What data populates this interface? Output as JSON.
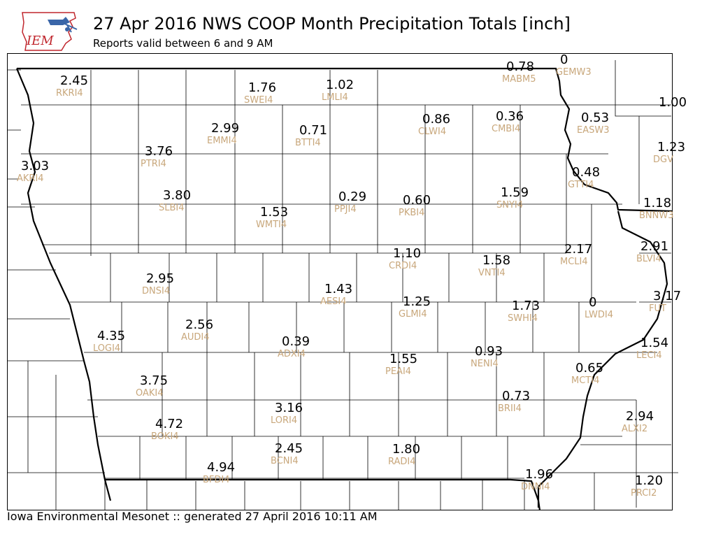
{
  "header": {
    "logo_text": "IEM",
    "title": "27 Apr 2016 NWS COOP Month Precipitation Totals [inch]",
    "subtitle": "Reports valid between 6 and 9 AM"
  },
  "footer": {
    "text": "Iowa Environmental Mesonet :: generated 27 April 2016 10:11 AM"
  },
  "colors": {
    "value": "#000000",
    "station_id": "#c8a77b",
    "county_line": "#000000",
    "logo_blue": "#3a66a8",
    "logo_red": "#c0262d"
  },
  "stations": [
    {
      "id": "RKRI4",
      "value": "2.45"
    },
    {
      "id": "SWEI4",
      "value": "1.76"
    },
    {
      "id": "LMLI4",
      "value": "1.02"
    },
    {
      "id": "MABM5",
      "value": "0.78"
    },
    {
      "id": "GEMW3",
      "value": "0"
    },
    {
      "id": "CLWI4",
      "value": "0.86"
    },
    {
      "id": "CMBI4",
      "value": "0.36"
    },
    {
      "id": "EASW3",
      "value": "0.53"
    },
    {
      "id": "",
      "value": "1.00"
    },
    {
      "id": "EMMI4",
      "value": "2.99"
    },
    {
      "id": "BTTI4",
      "value": "0.71"
    },
    {
      "id": "PTRI4",
      "value": "3.76"
    },
    {
      "id": "DGV",
      "value": "1.23"
    },
    {
      "id": "AKRI4",
      "value": "3.03"
    },
    {
      "id": "GTTI4",
      "value": "0.48"
    },
    {
      "id": "SLBI4",
      "value": "3.80"
    },
    {
      "id": "PPJI4",
      "value": "0.29"
    },
    {
      "id": "PKBI4",
      "value": "0.60"
    },
    {
      "id": "SNYI4",
      "value": "1.59"
    },
    {
      "id": "BNNW3",
      "value": "1.18"
    },
    {
      "id": "WMTI4",
      "value": "1.53"
    },
    {
      "id": "CRDI4",
      "value": "1.10"
    },
    {
      "id": "VNTI4",
      "value": "1.58"
    },
    {
      "id": "MCLI4",
      "value": "2.17"
    },
    {
      "id": "BLVI4",
      "value": "2.91"
    },
    {
      "id": "DNSI4",
      "value": "2.95"
    },
    {
      "id": "AESI4",
      "value": "1.43"
    },
    {
      "id": "GLMI4",
      "value": "1.25"
    },
    {
      "id": "SWHI4",
      "value": "1.73"
    },
    {
      "id": "LWDI4",
      "value": "0"
    },
    {
      "id": "FUT",
      "value": "3.17"
    },
    {
      "id": "LOGI4",
      "value": "4.35"
    },
    {
      "id": "AUDI4",
      "value": "2.56"
    },
    {
      "id": "ADXI4",
      "value": "0.39"
    },
    {
      "id": "LECI4",
      "value": "1.54"
    },
    {
      "id": "PEAI4",
      "value": "1.55"
    },
    {
      "id": "NENI4",
      "value": "0.93"
    },
    {
      "id": "MCTI4",
      "value": "0.65"
    },
    {
      "id": "OAKI4",
      "value": "3.75"
    },
    {
      "id": "BRII4",
      "value": "0.73"
    },
    {
      "id": "LORI4",
      "value": "3.16"
    },
    {
      "id": "ALXI2",
      "value": "2.94"
    },
    {
      "id": "BOKI4",
      "value": "4.72"
    },
    {
      "id": "BCNI4",
      "value": "2.45"
    },
    {
      "id": "RADI4",
      "value": "1.80"
    },
    {
      "id": "BFDI4",
      "value": "4.94"
    },
    {
      "id": "DNNI4",
      "value": "1.96"
    },
    {
      "id": "PRCI2",
      "value": "1.20"
    }
  ]
}
